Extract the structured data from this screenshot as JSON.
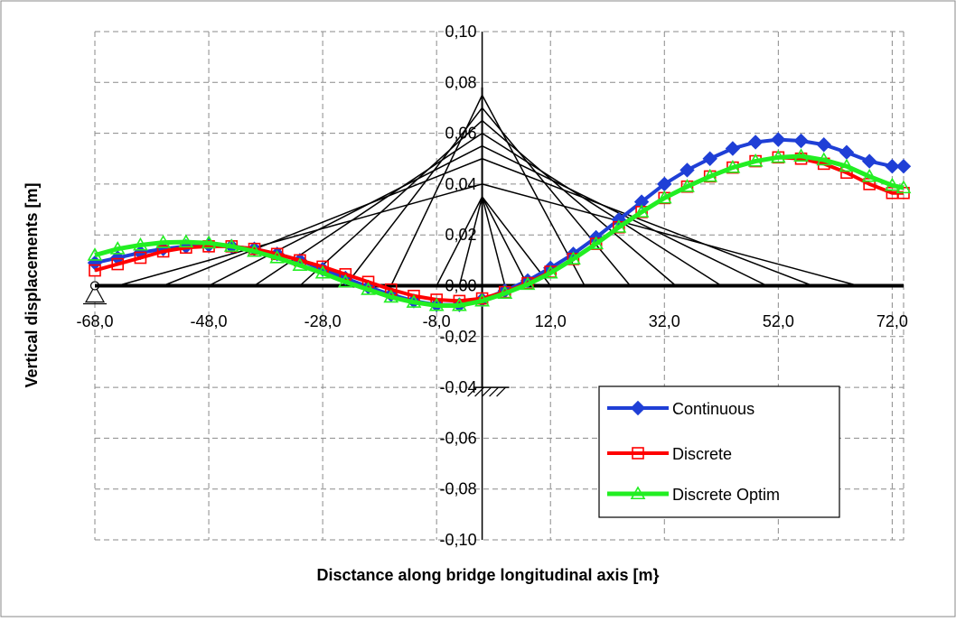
{
  "chart_data": {
    "type": "line",
    "xlabel": "Disctance along bridge longitudinal axis [m}",
    "ylabel": "Vertical displacements [m]",
    "xlim": [
      -68,
      74
    ],
    "ylim": [
      -0.1,
      0.1
    ],
    "x_ticks": [
      "-68,0",
      "-48,0",
      "-28,0",
      "-8,0",
      "12,0",
      "32,0",
      "52,0",
      "72,0"
    ],
    "y_ticks": [
      "0,10",
      "0,08",
      "0,06",
      "0,04",
      "0,02",
      "0,00",
      "-0,02",
      "-0,04",
      "-0,06",
      "-0,08",
      "-0,10"
    ],
    "grid": true,
    "legend_position": "bottom-right",
    "colors": {
      "continuous": "#1f3fd6",
      "discrete": "#ff0000",
      "optim": "#22ee22",
      "structure": "#000000",
      "grid": "#8a8a8a"
    },
    "x": [
      -68,
      -64,
      -60,
      -56,
      -52,
      -48,
      -44,
      -40,
      -36,
      -32,
      -28,
      -24,
      -20,
      -16,
      -12,
      -8,
      -4,
      0,
      4,
      8,
      12,
      16,
      20,
      24,
      28,
      32,
      36,
      40,
      44,
      48,
      52,
      56,
      60,
      64,
      68,
      72,
      74
    ],
    "series": [
      {
        "name": "Continuous",
        "marker": "diamond",
        "values": [
          0.009,
          0.011,
          0.013,
          0.0145,
          0.0155,
          0.016,
          0.0155,
          0.0145,
          0.0125,
          0.01,
          0.0065,
          0.003,
          -0.0005,
          -0.0035,
          -0.006,
          -0.0075,
          -0.0075,
          -0.0055,
          -0.002,
          0.002,
          0.007,
          0.0125,
          0.019,
          0.026,
          0.033,
          0.04,
          0.0455,
          0.05,
          0.054,
          0.0565,
          0.0575,
          0.057,
          0.0555,
          0.0525,
          0.049,
          0.047,
          0.047
        ]
      },
      {
        "name": "Discrete",
        "marker": "square",
        "values": [
          0.006,
          0.0085,
          0.011,
          0.0135,
          0.015,
          0.0155,
          0.0155,
          0.0145,
          0.0125,
          0.01,
          0.0075,
          0.0045,
          0.0015,
          -0.0015,
          -0.004,
          -0.0055,
          -0.006,
          -0.005,
          -0.0025,
          0.001,
          0.0055,
          0.0105,
          0.0165,
          0.023,
          0.029,
          0.0345,
          0.039,
          0.043,
          0.0465,
          0.049,
          0.0505,
          0.05,
          0.048,
          0.0445,
          0.04,
          0.0365,
          0.0365
        ]
      },
      {
        "name": "Discrete Optim",
        "marker": "triangle",
        "values": [
          0.012,
          0.0145,
          0.016,
          0.017,
          0.0172,
          0.0168,
          0.0155,
          0.0135,
          0.011,
          0.008,
          0.005,
          0.0015,
          -0.0015,
          -0.0045,
          -0.0065,
          -0.0078,
          -0.0078,
          -0.006,
          -0.003,
          0.0005,
          0.005,
          0.0105,
          0.0165,
          0.023,
          0.029,
          0.0345,
          0.039,
          0.043,
          0.0465,
          0.049,
          0.0505,
          0.051,
          0.0495,
          0.047,
          0.043,
          0.0395,
          0.0385
        ]
      }
    ]
  }
}
